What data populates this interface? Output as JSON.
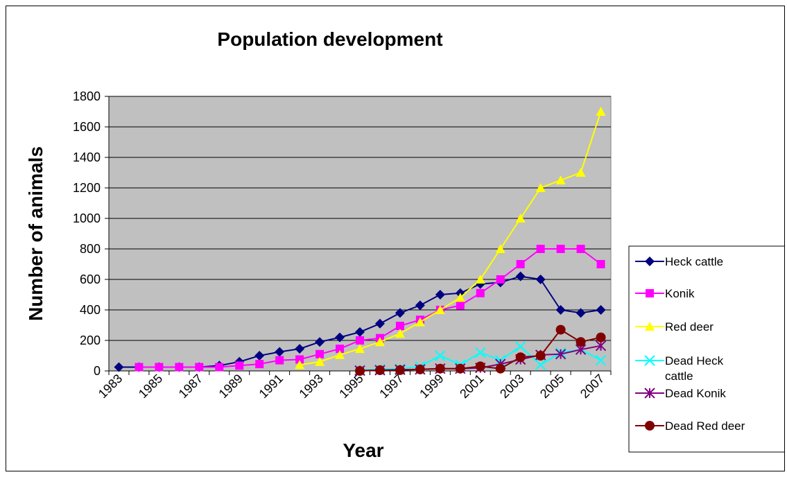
{
  "colors": {
    "plot_background": "#c0c0c0",
    "Heck cattle": "#000080",
    "Konik": "#ff00ff",
    "Red deer": "#ffff00",
    "Dead Heck cattle": "#00ffff",
    "Dead Konik": "#800080",
    "Dead Red deer": "#800000"
  },
  "chart_data": {
    "type": "line",
    "title": "Population development",
    "xlabel": "Year",
    "ylabel": "Number of animals",
    "ylim": [
      0,
      1800
    ],
    "yticks": [
      0,
      200,
      400,
      600,
      800,
      1000,
      1200,
      1400,
      1600,
      1800
    ],
    "xlim": [
      1983,
      2007
    ],
    "x_tick_labels": [
      "1983",
      "1985",
      "1987",
      "1989",
      "1991",
      "1993",
      "1995",
      "1997",
      "1999",
      "2001",
      "2003",
      "2005",
      "2007"
    ],
    "grid": "horizontal",
    "legend_position": "right",
    "series": [
      {
        "name": "Heck cattle",
        "marker": "diamond",
        "points": [
          [
            1983,
            25
          ],
          [
            1984,
            25
          ],
          [
            1985,
            25
          ],
          [
            1986,
            25
          ],
          [
            1987,
            25
          ],
          [
            1988,
            35
          ],
          [
            1989,
            60
          ],
          [
            1990,
            100
          ],
          [
            1991,
            125
          ],
          [
            1992,
            145
          ],
          [
            1993,
            190
          ],
          [
            1994,
            220
          ],
          [
            1995,
            255
          ],
          [
            1996,
            310
          ],
          [
            1997,
            380
          ],
          [
            1998,
            430
          ],
          [
            1999,
            500
          ],
          [
            2000,
            510
          ],
          [
            2001,
            570
          ],
          [
            2002,
            580
          ],
          [
            2003,
            620
          ],
          [
            2004,
            600
          ],
          [
            2005,
            400
          ],
          [
            2006,
            380
          ],
          [
            2007,
            400
          ]
        ]
      },
      {
        "name": "Konik",
        "marker": "square",
        "points": [
          [
            1984,
            25
          ],
          [
            1985,
            25
          ],
          [
            1986,
            25
          ],
          [
            1987,
            25
          ],
          [
            1988,
            25
          ],
          [
            1989,
            35
          ],
          [
            1990,
            45
          ],
          [
            1991,
            70
          ],
          [
            1992,
            75
          ],
          [
            1993,
            110
          ],
          [
            1994,
            145
          ],
          [
            1995,
            200
          ],
          [
            1996,
            215
          ],
          [
            1997,
            295
          ],
          [
            1998,
            335
          ],
          [
            1999,
            400
          ],
          [
            2000,
            430
          ],
          [
            2001,
            510
          ],
          [
            2002,
            600
          ],
          [
            2003,
            700
          ],
          [
            2004,
            800
          ],
          [
            2005,
            800
          ],
          [
            2006,
            800
          ],
          [
            2007,
            700
          ]
        ]
      },
      {
        "name": "Red deer",
        "marker": "triangle",
        "points": [
          [
            1992,
            40
          ],
          [
            1993,
            60
          ],
          [
            1994,
            105
          ],
          [
            1995,
            145
          ],
          [
            1996,
            190
          ],
          [
            1997,
            245
          ],
          [
            1998,
            320
          ],
          [
            1999,
            400
          ],
          [
            2000,
            480
          ],
          [
            2001,
            600
          ],
          [
            2002,
            800
          ],
          [
            2003,
            1000
          ],
          [
            2004,
            1200
          ],
          [
            2005,
            1250
          ],
          [
            2006,
            1300
          ],
          [
            2007,
            1700
          ]
        ]
      },
      {
        "name": "Dead Heck cattle",
        "marker": "x",
        "points": [
          [
            1995,
            5
          ],
          [
            1996,
            10
          ],
          [
            1997,
            15
          ],
          [
            1998,
            30
          ],
          [
            1999,
            100
          ],
          [
            2000,
            40
          ],
          [
            2001,
            120
          ],
          [
            2002,
            70
          ],
          [
            2003,
            160
          ],
          [
            2004,
            40
          ],
          [
            2005,
            120
          ],
          [
            2006,
            140
          ],
          [
            2007,
            70
          ]
        ]
      },
      {
        "name": "Dead Konik",
        "marker": "star",
        "points": [
          [
            1995,
            2
          ],
          [
            1996,
            5
          ],
          [
            1997,
            8
          ],
          [
            1998,
            10
          ],
          [
            1999,
            15
          ],
          [
            2000,
            15
          ],
          [
            2001,
            20
          ],
          [
            2002,
            45
          ],
          [
            2003,
            75
          ],
          [
            2004,
            105
          ],
          [
            2005,
            110
          ],
          [
            2006,
            140
          ],
          [
            2007,
            165
          ]
        ]
      },
      {
        "name": "Dead Red deer",
        "marker": "circle",
        "points": [
          [
            1995,
            0
          ],
          [
            1996,
            5
          ],
          [
            1997,
            5
          ],
          [
            1998,
            10
          ],
          [
            1999,
            15
          ],
          [
            2000,
            15
          ],
          [
            2001,
            30
          ],
          [
            2002,
            15
          ],
          [
            2003,
            90
          ],
          [
            2004,
            100
          ],
          [
            2005,
            270
          ],
          [
            2006,
            190
          ],
          [
            2007,
            220
          ]
        ]
      }
    ],
    "legend_labels": [
      "Heck cattle",
      "Konik",
      "Red deer",
      "Dead Heck\ncattle",
      "Dead Konik",
      "Dead Red deer"
    ]
  }
}
